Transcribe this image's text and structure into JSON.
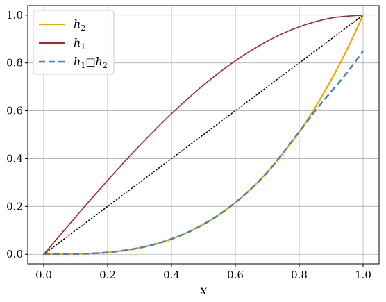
{
  "chart_data": {
    "type": "line",
    "title": "",
    "xlabel": "x",
    "ylabel": "",
    "xlim": [
      -0.05,
      1.05
    ],
    "ylim": [
      -0.04,
      1.04
    ],
    "xticks": [
      0.0,
      0.2,
      0.4,
      0.6,
      0.8,
      1.0
    ],
    "xtick_labels": [
      "0.0",
      "0.2",
      "0.4",
      "0.6",
      "0.8",
      "1.0"
    ],
    "yticks": [
      0.0,
      0.2,
      0.4,
      0.6,
      0.8,
      1.0
    ],
    "ytick_labels": [
      "0.0",
      "0.2",
      "0.4",
      "0.6",
      "0.8",
      "1.0"
    ],
    "grid": true,
    "legend_position": "top-left",
    "series": [
      {
        "name": "h_2",
        "color": "#f5a300",
        "style": "solid",
        "x": [
          0.0,
          0.1,
          0.2,
          0.3,
          0.4,
          0.5,
          0.6,
          0.7,
          0.8,
          0.85,
          0.9,
          0.95,
          1.0
        ],
        "y": [
          0.0,
          0.001,
          0.008,
          0.027,
          0.064,
          0.125,
          0.216,
          0.343,
          0.512,
          0.614,
          0.729,
          0.857,
          1.0
        ]
      },
      {
        "name": "h_1",
        "color": "#a52a2a",
        "style": "solid",
        "x": [
          0.0,
          0.1,
          0.2,
          0.3,
          0.4,
          0.5,
          0.6,
          0.7,
          0.8,
          0.9,
          1.0
        ],
        "y": [
          0.0,
          0.156,
          0.309,
          0.454,
          0.588,
          0.707,
          0.809,
          0.891,
          0.951,
          0.988,
          1.0
        ]
      },
      {
        "name": "h_1□h_2",
        "color": "#4682b4",
        "style": "dashed",
        "x": [
          0.0,
          0.1,
          0.2,
          0.3,
          0.4,
          0.5,
          0.6,
          0.7,
          0.8,
          0.85,
          0.9,
          0.95,
          1.0
        ],
        "y": [
          0.0,
          0.001,
          0.008,
          0.027,
          0.064,
          0.125,
          0.216,
          0.343,
          0.512,
          0.6,
          0.68,
          0.76,
          0.85
        ]
      },
      {
        "name": "",
        "color": "#000000",
        "style": "dotted",
        "x": [
          0.0,
          1.0
        ],
        "y": [
          0.0,
          1.0
        ]
      }
    ],
    "legend": [
      {
        "main": "h",
        "sub": "2",
        "series": 0
      },
      {
        "main": "h",
        "sub": "1",
        "series": 1
      },
      {
        "main": "h",
        "sub": "1",
        "op": "□",
        "main2": "h",
        "sub2": "2",
        "series": 2
      }
    ]
  }
}
